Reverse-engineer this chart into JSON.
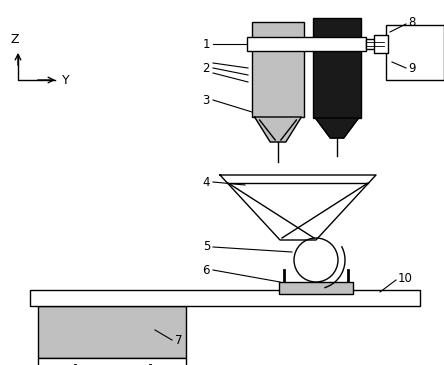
{
  "bg_color": "#ffffff",
  "line_color": "#000000",
  "gray_light": "#c0c0c0",
  "gray_dark": "#1a1a1a",
  "figsize": [
    4.44,
    3.65
  ],
  "dpi": 100
}
